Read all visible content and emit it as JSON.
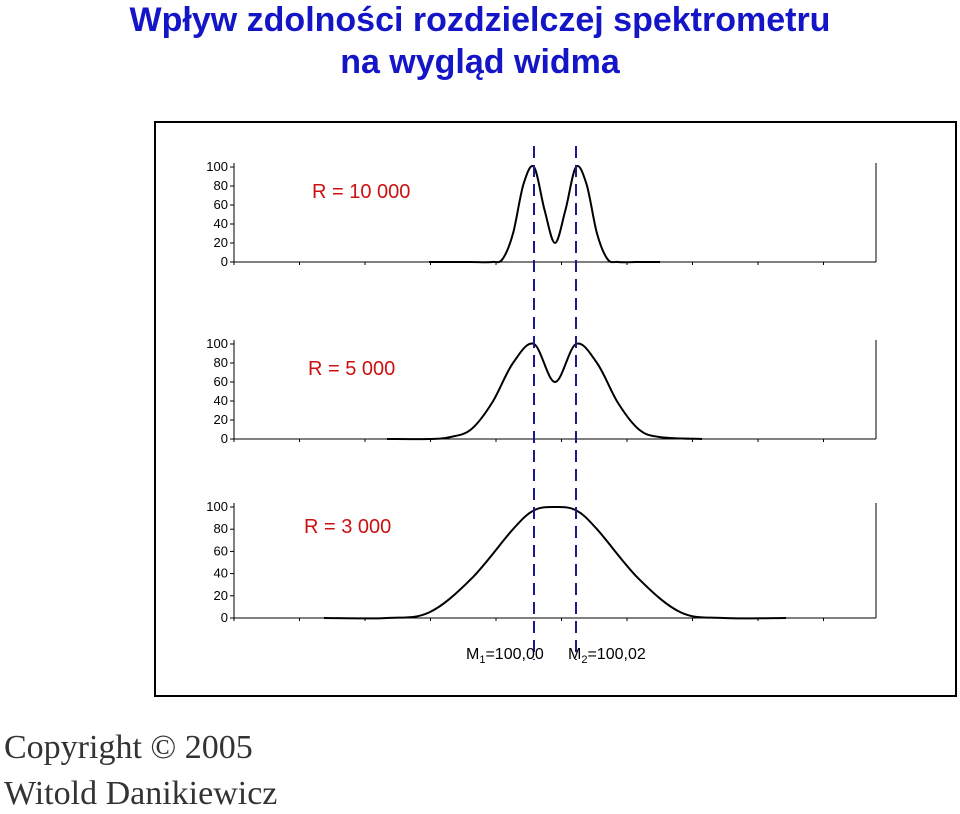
{
  "title": {
    "line1": "Wpływ zdolności rozdzielczej spektrometru",
    "line2": "na wygląd widma"
  },
  "colors": {
    "title": "#1515c8",
    "resolution_label": "#cc1111",
    "marker_line": "#1a1a8c",
    "curve": "#000000"
  },
  "chart_data": [
    {
      "type": "line",
      "label": "R = 10 000",
      "resolution": 10000,
      "peak_centers": [
        100.0,
        100.02
      ],
      "ylim": [
        0,
        100
      ],
      "yticks": [
        "100",
        "80",
        "60",
        "40",
        "20",
        "0"
      ],
      "x": [
        99.95,
        99.96,
        99.97,
        99.98,
        99.985,
        99.99,
        99.995,
        100.0,
        100.005,
        100.01,
        100.015,
        100.02,
        100.025,
        100.03,
        100.035,
        100.04,
        100.05,
        100.06
      ],
      "y": [
        0,
        0,
        0,
        0,
        3,
        30,
        82,
        100,
        55,
        20,
        55,
        100,
        82,
        30,
        3,
        0,
        0,
        0
      ]
    },
    {
      "type": "line",
      "label": "R = 5 000",
      "resolution": 5000,
      "peak_centers": [
        100.0,
        100.02
      ],
      "ylim": [
        0,
        100
      ],
      "yticks": [
        "100",
        "80",
        "60",
        "40",
        "20",
        "0"
      ],
      "x": [
        99.93,
        99.95,
        99.96,
        99.97,
        99.98,
        99.99,
        100.0,
        100.01,
        100.02,
        100.03,
        100.04,
        100.05,
        100.06,
        100.08
      ],
      "y": [
        0,
        0,
        2,
        10,
        38,
        80,
        100,
        60,
        100,
        80,
        38,
        10,
        2,
        0
      ]
    },
    {
      "type": "line",
      "label": "R = 3 000",
      "resolution": 3000,
      "peak_centers": [
        100.0,
        100.02
      ],
      "ylim": [
        0,
        100
      ],
      "yticks": [
        "100",
        "80",
        "60",
        "40",
        "20",
        "0"
      ],
      "x": [
        99.9,
        99.93,
        99.95,
        99.97,
        99.99,
        100.0,
        100.01,
        100.02,
        100.03,
        100.05,
        100.07,
        100.09,
        100.12
      ],
      "y": [
        0,
        0,
        5,
        35,
        80,
        97,
        100,
        97,
        80,
        35,
        5,
        0,
        0
      ]
    }
  ],
  "mass_labels": {
    "m1": {
      "symbol": "M",
      "sub": "1",
      "value": "=100,00"
    },
    "m2": {
      "symbol": "M",
      "sub": "2",
      "value": "=100,02"
    }
  },
  "copyright": {
    "line1": "Copyright © 2005",
    "line2": "Witold Danikiewicz"
  }
}
